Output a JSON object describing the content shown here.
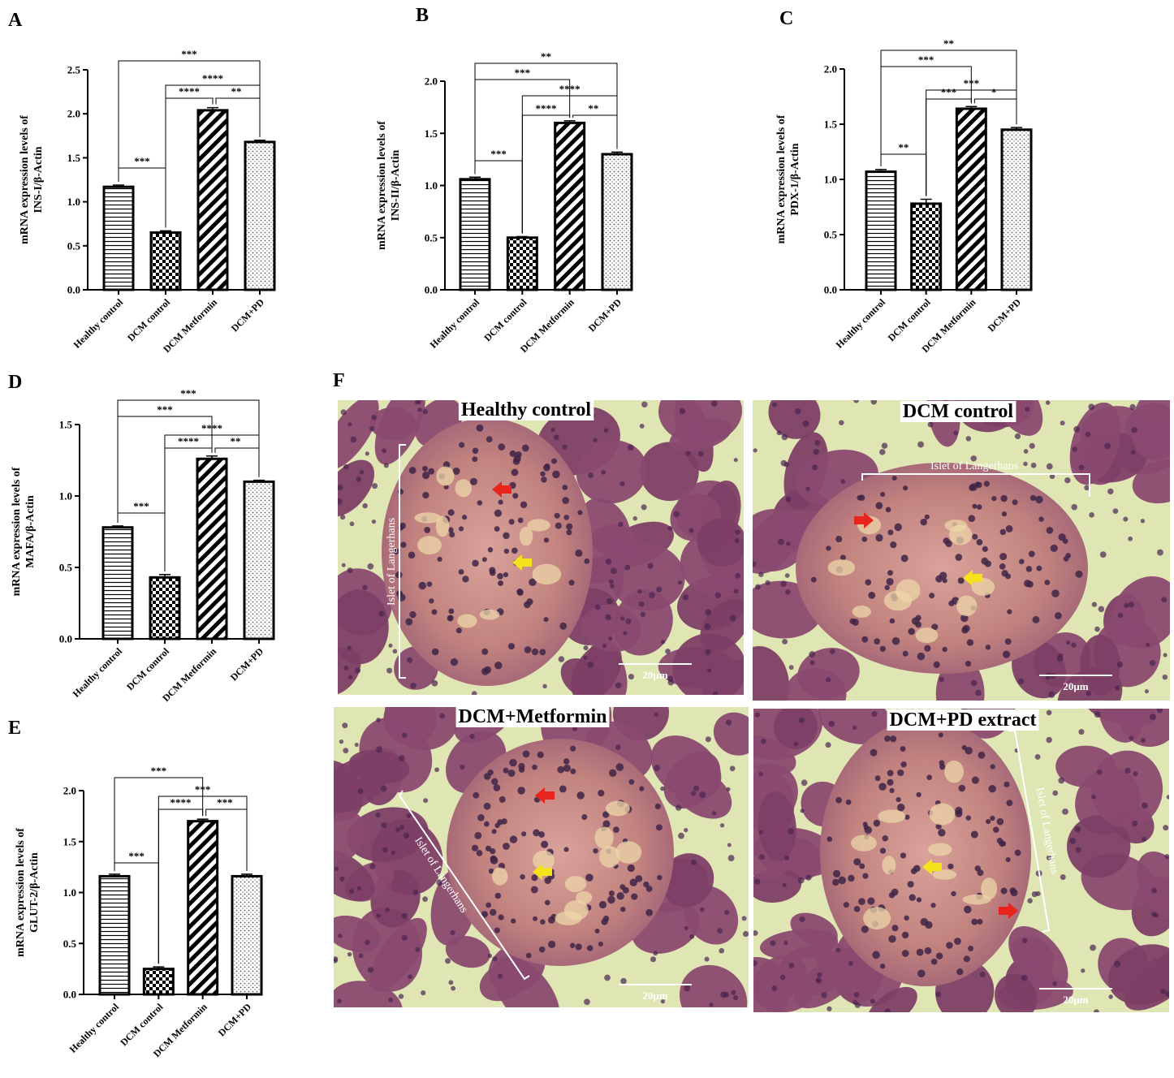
{
  "panel_letters": [
    "A",
    "B",
    "C",
    "D",
    "E",
    "F"
  ],
  "chart_data": [
    {
      "panel": "A",
      "type": "bar",
      "categories": [
        "Healthy control",
        "DCM control",
        "DCM Metformin",
        "DCM+PD"
      ],
      "values": [
        1.17,
        0.65,
        2.04,
        1.68
      ],
      "errors": [
        0.02,
        0.02,
        0.03,
        0.02
      ],
      "ylabel_lines": [
        "mRNA expression levels of",
        "INS-I/β-Actin"
      ],
      "ylim": [
        0,
        2.5
      ],
      "yticks": [
        "0.0",
        "0.5",
        "1.0",
        "1.5",
        "2.0",
        "2.5"
      ],
      "significance": [
        {
          "from": 0,
          "to": 3,
          "label": "***"
        },
        {
          "from": 1,
          "to": 3,
          "label": "****"
        },
        {
          "from": 1,
          "to": 2,
          "label": "****"
        },
        {
          "from": 2,
          "to": 3,
          "label": "**"
        },
        {
          "from": 0,
          "to": 1,
          "label": "***"
        }
      ]
    },
    {
      "panel": "B",
      "type": "bar",
      "categories": [
        "Healthy control",
        "DCM control",
        "DCM Metformin",
        "DCM+PD"
      ],
      "values": [
        1.06,
        0.5,
        1.6,
        1.3
      ],
      "errors": [
        0.02,
        0.01,
        0.02,
        0.02
      ],
      "ylabel_lines": [
        "mRNA expression levels of",
        "INS-II/β-Actin"
      ],
      "ylim": [
        0,
        2.0
      ],
      "yticks": [
        "0.0",
        "0.5",
        "1.0",
        "1.5",
        "2.0"
      ],
      "significance": [
        {
          "from": 0,
          "to": 3,
          "label": "**"
        },
        {
          "from": 0,
          "to": 2,
          "label": "***"
        },
        {
          "from": 1,
          "to": 3,
          "label": "****"
        },
        {
          "from": 1,
          "to": 2,
          "label": "****"
        },
        {
          "from": 2,
          "to": 3,
          "label": "**"
        },
        {
          "from": 0,
          "to": 1,
          "label": "***"
        }
      ]
    },
    {
      "panel": "C",
      "type": "bar",
      "categories": [
        "Healthy control",
        "DCM control",
        "DCM Metformin",
        "DCM+PD"
      ],
      "values": [
        1.07,
        0.78,
        1.64,
        1.45
      ],
      "errors": [
        0.02,
        0.04,
        0.02,
        0.02
      ],
      "ylabel_lines": [
        "mRNA expression levels of",
        "PDX-1/β-Actin"
      ],
      "ylim": [
        0,
        2.0
      ],
      "yticks": [
        "0.0",
        "0.5",
        "1.0",
        "1.5",
        "2.0"
      ],
      "significance": [
        {
          "from": 0,
          "to": 3,
          "label": "**"
        },
        {
          "from": 0,
          "to": 2,
          "label": "***"
        },
        {
          "from": 1,
          "to": 3,
          "label": "***"
        },
        {
          "from": 1,
          "to": 2,
          "label": "***"
        },
        {
          "from": 2,
          "to": 3,
          "label": "*"
        },
        {
          "from": 0,
          "to": 1,
          "label": "**"
        }
      ]
    },
    {
      "panel": "D",
      "type": "bar",
      "categories": [
        "Healthy control",
        "DCM control",
        "DCM Metformin",
        "DCM+PD"
      ],
      "values": [
        0.78,
        0.43,
        1.26,
        1.1
      ],
      "errors": [
        0.01,
        0.02,
        0.02,
        0.01
      ],
      "ylabel_lines": [
        "mRNA expression levels of",
        "MAFA/β-Actin"
      ],
      "ylim": [
        0,
        1.5
      ],
      "yticks": [
        "0.0",
        "0.5",
        "1.0",
        "1.5"
      ],
      "significance": [
        {
          "from": 0,
          "to": 3,
          "label": "***"
        },
        {
          "from": 0,
          "to": 2,
          "label": "***"
        },
        {
          "from": 1,
          "to": 3,
          "label": "****"
        },
        {
          "from": 1,
          "to": 2,
          "label": "****"
        },
        {
          "from": 2,
          "to": 3,
          "label": "**"
        },
        {
          "from": 0,
          "to": 1,
          "label": "***"
        }
      ]
    },
    {
      "panel": "E",
      "type": "bar",
      "categories": [
        "Healthy control",
        "DCM control",
        "DCM Metformin",
        "DCM+PD"
      ],
      "values": [
        1.16,
        0.25,
        1.7,
        1.16
      ],
      "errors": [
        0.02,
        0.02,
        0.02,
        0.02
      ],
      "ylabel_lines": [
        "mRNA expression levels of",
        "GLUT-2/β-Actin"
      ],
      "ylim": [
        0,
        2.0
      ],
      "yticks": [
        "0.0",
        "0.5",
        "1.0",
        "1.5",
        "2.0"
      ],
      "significance": [
        {
          "from": 0,
          "to": 2,
          "label": "***"
        },
        {
          "from": 1,
          "to": 3,
          "label": "***"
        },
        {
          "from": 1,
          "to": 2,
          "label": "****"
        },
        {
          "from": 2,
          "to": 3,
          "label": "***"
        },
        {
          "from": 0,
          "to": 1,
          "label": "***"
        }
      ]
    }
  ],
  "micrographs": [
    {
      "title": "Healthy control",
      "islet_label": "Islet of Langerhans",
      "scale": "20μm"
    },
    {
      "title": "DCM control",
      "islet_label": "Islet of Langerhans",
      "scale": "20μm"
    },
    {
      "title": "DCM+Metformin",
      "islet_label": "Islet of Langerhans",
      "scale": "20μm"
    },
    {
      "title": "DCM+PD extract",
      "islet_label": "Islet of Langerhans",
      "scale": "20μm"
    }
  ],
  "colors": {
    "tissue_base": "#8a4a70",
    "lumen": "#dfe6b4",
    "islet": "#c98a86",
    "nucleus": "#3e2547",
    "red_arrow": "#e8241c",
    "yellow_arrow": "#f4e21a"
  }
}
